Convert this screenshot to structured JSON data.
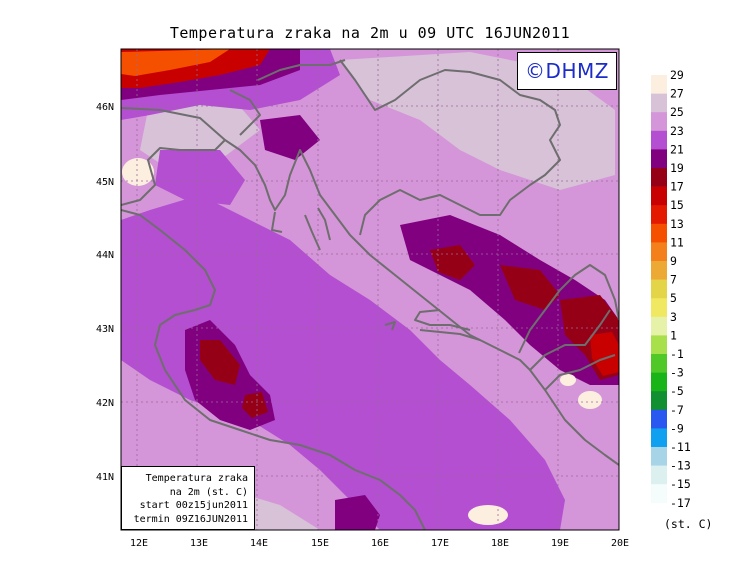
{
  "title": "Temperatura zraka na 2m u 09 UTC 16JUN2011",
  "logo_text": "©DHMZ",
  "info_box": {
    "line1": "Temperatura zraka",
    "line2": "na 2m (st. C)",
    "line3": "start 00z15jun2011",
    "line4": "termin 09Z16JUN2011"
  },
  "map": {
    "lon_range": [
      11.8,
      20
    ],
    "lat_range": [
      40.3,
      46.8
    ],
    "x_ticks": [
      "12E",
      "13E",
      "14E",
      "15E",
      "16E",
      "17E",
      "18E",
      "19E",
      "20E"
    ],
    "y_ticks": [
      "41N",
      "42N",
      "43N",
      "44N",
      "45N",
      "46N"
    ],
    "grid": true
  },
  "colorbar": {
    "unit": "(st. C)",
    "levels": [
      "29",
      "27",
      "25",
      "23",
      "21",
      "19",
      "17",
      "15",
      "13",
      "11",
      "9",
      "7",
      "5",
      "3",
      "1",
      "-1",
      "-3",
      "-5",
      "-7",
      "-9",
      "-11",
      "-13",
      "-15",
      "-17"
    ],
    "colors": [
      "#fcefe0",
      "#d8c2d8",
      "#d496d8",
      "#b34fd0",
      "#800080",
      "#960017",
      "#c80000",
      "#e41a00",
      "#f54f00",
      "#f4801b",
      "#ecaa35",
      "#e4d447",
      "#f0e860",
      "#e6f2a8",
      "#a8e04c",
      "#50c828",
      "#18b418",
      "#109030",
      "#2858f0",
      "#10a0f0",
      "#a8d4e8",
      "#dcf0f0",
      "#f4fcfc"
    ]
  }
}
